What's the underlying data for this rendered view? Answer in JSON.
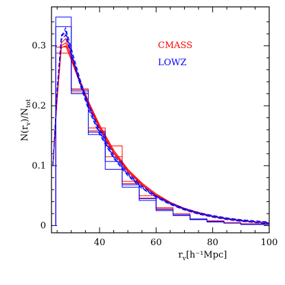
{
  "chart_data": {
    "type": "line",
    "xlabel": {
      "main": "r",
      "sub": "v",
      "rest": "[h⁻¹Mpc]"
    },
    "ylabel": {
      "pre": "N(r",
      "sub1": "v",
      "mid": ")/N",
      "sub2": "tot"
    },
    "xlim": [
      23,
      100
    ],
    "ylim": [
      -0.012,
      0.365
    ],
    "x_ticks": [
      {
        "v": 40,
        "label": "40"
      },
      {
        "v": 60,
        "label": "60"
      },
      {
        "v": 80,
        "label": "80"
      },
      {
        "v": 100,
        "label": "100"
      }
    ],
    "y_ticks": [
      {
        "v": 0,
        "label": "0"
      },
      {
        "v": 0.1,
        "label": "0.1"
      },
      {
        "v": 0.2,
        "label": "0.2"
      },
      {
        "v": 0.3,
        "label": "0.3"
      }
    ],
    "legend": [
      {
        "name": "CMASS",
        "color": "#ff0000"
      },
      {
        "name": "LOWZ",
        "color": "#0000ff"
      }
    ],
    "series": [
      {
        "name": "CMASS",
        "color": "#ff0000",
        "histograms": [
          {
            "edges": [
              23.5,
              24.5,
              30,
              36,
              42,
              48,
              54,
              60,
              66,
              72,
              78,
              84,
              90,
              100
            ],
            "values": [
              0,
              0.288,
              0.228,
              0.163,
              0.115,
              0.07,
              0.05,
              0.03,
              0.02,
              0.011,
              0.008,
              0.005,
              0.003
            ]
          },
          {
            "edges": [
              23.5,
              24.5,
              30,
              36,
              42,
              48,
              54,
              60,
              66,
              72,
              78,
              84,
              90,
              100
            ],
            "values": [
              0,
              0.298,
              0.223,
              0.158,
              0.133,
              0.074,
              0.046,
              0.028,
              0.017,
              0.01,
              0.007,
              0.004,
              0.002
            ]
          }
        ],
        "curves": [
          {
            "x": [
              23.5,
              25,
              26.5,
              28,
              30,
              33,
              36,
              40,
              45,
              50,
              55,
              60,
              65,
              70,
              75,
              80,
              85,
              90,
              95,
              100
            ],
            "y": [
              0.1,
              0.21,
              0.3,
              0.305,
              0.28,
              0.24,
              0.205,
              0.165,
              0.123,
              0.092,
              0.069,
              0.051,
              0.038,
              0.028,
              0.021,
              0.015,
              0.011,
              0.008,
              0.006,
              0.004
            ]
          },
          {
            "x": [
              23.5,
              25,
              26.5,
              28,
              30,
              33,
              36,
              40,
              45,
              50,
              55,
              60,
              65,
              70,
              75,
              80,
              85,
              90,
              95,
              100
            ],
            "y": [
              0.1,
              0.22,
              0.305,
              0.312,
              0.284,
              0.243,
              0.208,
              0.168,
              0.126,
              0.094,
              0.071,
              0.053,
              0.039,
              0.029,
              0.022,
              0.016,
              0.012,
              0.009,
              0.006,
              0.004
            ]
          },
          {
            "x": [
              23.5,
              25,
              26.5,
              28,
              30,
              33,
              36,
              40,
              45,
              50,
              55,
              60,
              65,
              70,
              75,
              80,
              85,
              90,
              95,
              100
            ],
            "y": [
              0.1,
              0.215,
              0.297,
              0.3,
              0.276,
              0.238,
              0.202,
              0.162,
              0.121,
              0.09,
              0.068,
              0.05,
              0.037,
              0.027,
              0.02,
              0.015,
              0.011,
              0.008,
              0.006,
              0.004
            ]
          }
        ]
      },
      {
        "name": "LOWZ",
        "color": "#0000ff",
        "histograms": [
          {
            "edges": [
              23.5,
              24.5,
              30,
              36,
              42,
              48,
              54,
              60,
              66,
              72,
              78,
              84,
              90,
              100
            ],
            "values": [
              0,
              0.348,
              0.22,
              0.152,
              0.094,
              0.064,
              0.042,
              0.025,
              0.017,
              0.01,
              0.006,
              0.004,
              0.002
            ]
          },
          {
            "edges": [
              23.5,
              24.5,
              30,
              36,
              42,
              48,
              54,
              60,
              66,
              72,
              78,
              84,
              90,
              100
            ],
            "values": [
              0,
              0.332,
              0.226,
              0.156,
              0.107,
              0.068,
              0.045,
              0.027,
              0.018,
              0.011,
              0.007,
              0.004,
              0.002
            ]
          }
        ],
        "curves": [
          {
            "x": [
              23.5,
              25,
              26.5,
              28,
              30,
              33,
              36,
              40,
              45,
              50,
              55,
              60,
              65,
              70,
              75,
              80,
              85,
              90,
              95,
              100
            ],
            "y": [
              0.1,
              0.23,
              0.318,
              0.325,
              0.29,
              0.242,
              0.2,
              0.157,
              0.115,
              0.085,
              0.063,
              0.048,
              0.036,
              0.027,
              0.02,
              0.015,
              0.011,
              0.008,
              0.006,
              0.004
            ]
          },
          {
            "x": [
              23.5,
              25,
              26.5,
              28,
              30,
              33,
              36,
              40,
              45,
              50,
              55,
              60,
              65,
              70,
              75,
              80,
              85,
              90,
              95,
              100
            ],
            "y": [
              0.1,
              0.225,
              0.315,
              0.33,
              0.296,
              0.246,
              0.203,
              0.16,
              0.118,
              0.088,
              0.066,
              0.05,
              0.038,
              0.029,
              0.022,
              0.017,
              0.013,
              0.01,
              0.008,
              0.006
            ]
          },
          {
            "x": [
              23.5,
              25,
              26.5,
              28,
              30,
              33,
              36,
              40,
              45,
              50,
              55,
              60,
              65,
              70,
              75,
              80,
              85,
              90,
              95,
              100
            ],
            "y": [
              0.1,
              0.22,
              0.31,
              0.318,
              0.285,
              0.236,
              0.194,
              0.152,
              0.112,
              0.083,
              0.062,
              0.047,
              0.035,
              0.026,
              0.019,
              0.014,
              0.01,
              0.007,
              0.005,
              0.003
            ]
          },
          {
            "x": [
              23.5,
              25,
              26.5,
              28,
              30,
              33,
              36,
              40,
              45,
              50,
              55,
              60,
              65,
              70,
              75,
              80,
              85,
              90,
              95,
              100
            ],
            "y": [
              0.1,
              0.228,
              0.316,
              0.322,
              0.288,
              0.24,
              0.198,
              0.155,
              0.114,
              0.086,
              0.065,
              0.049,
              0.037,
              0.028,
              0.021,
              0.016,
              0.012,
              0.009,
              0.007,
              0.005
            ]
          }
        ]
      }
    ]
  }
}
